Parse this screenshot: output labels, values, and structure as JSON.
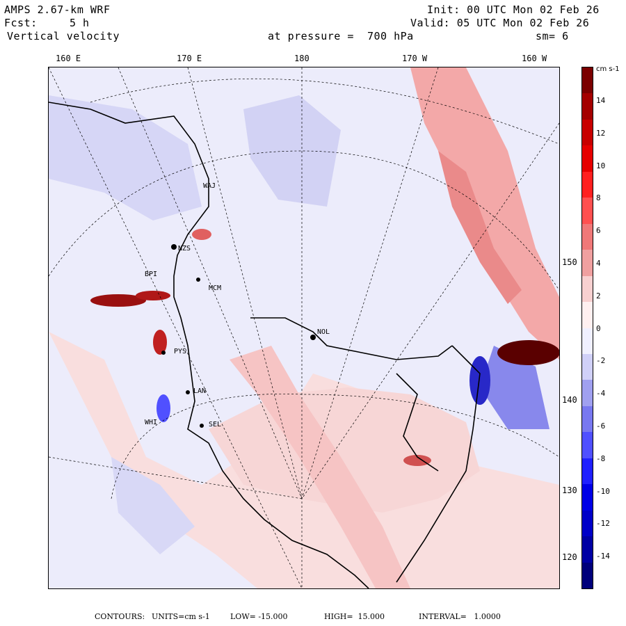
{
  "header": {
    "model": "AMPS 2.67-km WRF",
    "forecast_label": "Fcst:",
    "forecast_value": "5 h",
    "variable": "Vertical velocity",
    "init": "Init: 00 UTC Mon 02 Feb 26",
    "valid": "Valid: 05 UTC Mon 02 Feb 26",
    "pressure": "at pressure =  700 hPa",
    "smoothing": "sm= 6"
  },
  "map": {
    "longitude_labels": [
      "160 E",
      "170 E",
      "180",
      "170 W",
      "160 W"
    ],
    "latitude_labels": [
      "150 W",
      "140 W",
      "130 W",
      "120 W"
    ],
    "stations": [
      "NZS",
      "WAJ",
      "NOL",
      "PYS",
      "LAN",
      "SEL",
      "WHI",
      "BPI",
      "MCM"
    ]
  },
  "colorbar": {
    "units": "cm s-1",
    "ticks": [
      "14",
      "12",
      "10",
      "8",
      "6",
      "4",
      "2",
      "0",
      "-2",
      "-4",
      "-6",
      "-8",
      "-10",
      "-12",
      "-14"
    ],
    "colors": [
      "#7b0000",
      "#a40000",
      "#c80000",
      "#e60000",
      "#ff2020",
      "#ff5050",
      "#f07878",
      "#f0a0a0",
      "#f8d0d0",
      "#fff0f0",
      "#f0f0ff",
      "#d0d0f8",
      "#a0a0f0",
      "#7878f0",
      "#5050ff",
      "#2020ff",
      "#0000e6",
      "#0000c8",
      "#0000a4",
      "#00007b"
    ]
  },
  "footer": {
    "contours": "CONTOURS:",
    "units": "UNITS=cm s-1",
    "low": "LOW= -15.000",
    "high": "HIGH=  15.000",
    "interval": "INTERVAL=   1.0000"
  }
}
